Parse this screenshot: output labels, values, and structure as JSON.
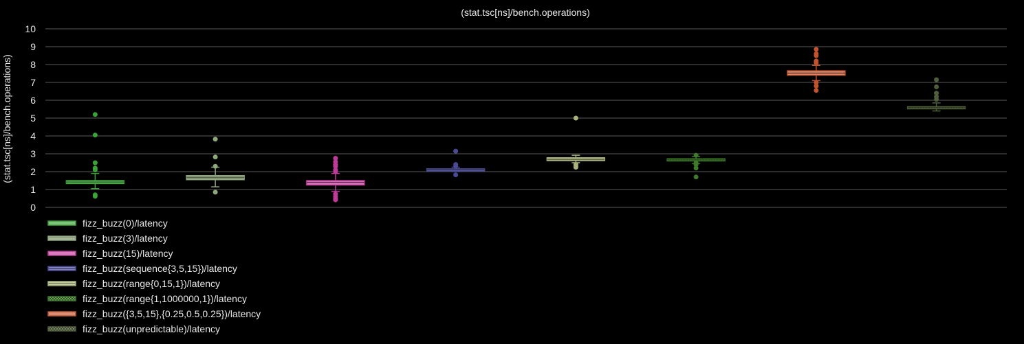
{
  "chart_data": {
    "type": "box",
    "title": "(stat.tsc[ns]/bench.operations)",
    "ylabel": "(stat.tsc[ns]/bench.operations)",
    "xlabel": "",
    "ylim": [
      0,
      10
    ],
    "yticks": [
      0,
      1,
      2,
      3,
      4,
      5,
      6,
      7,
      8,
      9,
      10
    ],
    "grid": true,
    "legend_position": "bottom-left",
    "series": [
      {
        "name": "fizz_buzz(0)/latency",
        "color": "#3aa335",
        "pattern": "solid",
        "whisker_low": 1.05,
        "q1": 1.33,
        "median": 1.42,
        "q3": 1.5,
        "whisker_high": 1.9,
        "outliers": [
          5.2,
          4.05,
          2.5,
          2.2,
          2.1,
          0.7,
          0.62
        ]
      },
      {
        "name": "fizz_buzz(3)/latency",
        "color": "#8fa77c",
        "pattern": "striped",
        "whisker_low": 1.15,
        "q1": 1.55,
        "median": 1.68,
        "q3": 1.78,
        "whisker_high": 2.25,
        "outliers": [
          3.82,
          2.82,
          2.3,
          0.85
        ]
      },
      {
        "name": "fizz_buzz(15)/latency",
        "color": "#c03a9a",
        "pattern": "solid",
        "whisker_low": 0.9,
        "q1": 1.25,
        "median": 1.4,
        "q3": 1.5,
        "whisker_high": 1.9,
        "outliers": [
          2.75,
          2.55,
          2.4,
          2.3,
          2.1,
          2.0,
          0.75,
          0.6,
          0.5,
          0.42
        ]
      },
      {
        "name": "fizz_buzz(sequence{3,5,15})/latency",
        "color": "#4a4a94",
        "pattern": "striped",
        "whisker_low": 2.0,
        "q1": 2.03,
        "median": 2.1,
        "q3": 2.16,
        "whisker_high": 2.25,
        "outliers": [
          3.15,
          2.4,
          2.3,
          1.82
        ]
      },
      {
        "name": "fizz_buzz(range{0,15,1})/latency",
        "color": "#a8b37c",
        "pattern": "striped",
        "whisker_low": 2.5,
        "q1": 2.62,
        "median": 2.7,
        "q3": 2.78,
        "whisker_high": 2.92,
        "outliers": [
          5.0,
          2.4,
          2.3,
          2.25
        ]
      },
      {
        "name": "fizz_buzz(range{1,1000000,1})/latency",
        "color": "#3e7a2a",
        "pattern": "checkered",
        "whisker_low": 2.45,
        "q1": 2.6,
        "median": 2.66,
        "q3": 2.72,
        "whisker_high": 2.85,
        "outliers": [
          2.92,
          2.5,
          2.4,
          2.2,
          1.7
        ]
      },
      {
        "name": "fizz_buzz({3,5,15},{0.25,0.5,0.25})/latency",
        "color": "#c0532e",
        "pattern": "solid",
        "whisker_low": 7.1,
        "q1": 7.4,
        "median": 7.52,
        "q3": 7.65,
        "whisker_high": 7.95,
        "outliers": [
          8.85,
          8.6,
          8.5,
          8.2,
          8.1,
          7.0,
          6.8,
          6.55
        ]
      },
      {
        "name": "fizz_buzz(unpredictable)/latency",
        "color": "#4f5e3a",
        "pattern": "checkered",
        "whisker_low": 5.4,
        "q1": 5.52,
        "median": 5.58,
        "q3": 5.64,
        "whisker_high": 5.85,
        "outliers": [
          7.15,
          6.75,
          6.4,
          6.2,
          6.05
        ]
      }
    ]
  }
}
